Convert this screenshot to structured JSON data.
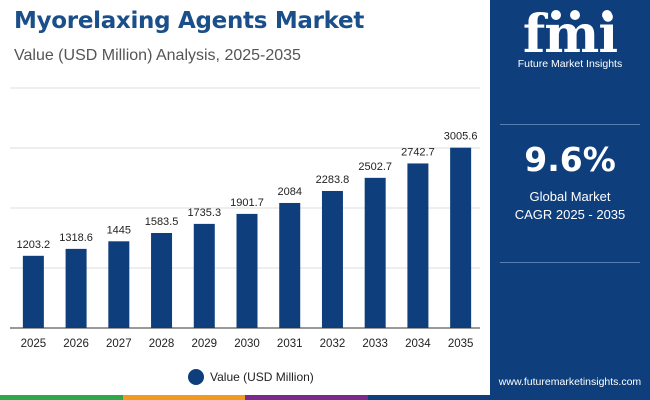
{
  "header": {
    "title": "Myorelaxing Agents Market",
    "subtitle": "Value (USD Million) Analysis, 2025-2035"
  },
  "chart_data": {
    "type": "bar",
    "categories": [
      "2025",
      "2026",
      "2027",
      "2028",
      "2029",
      "2030",
      "2031",
      "2032",
      "2033",
      "2034",
      "2035"
    ],
    "series": [
      {
        "name": "Value (USD Million)",
        "values": [
          1203.2,
          1318.6,
          1445,
          1583.5,
          1735.3,
          1901.7,
          2084,
          2283.8,
          2502.7,
          2742.7,
          3005.6
        ],
        "labels": [
          "1203.2",
          "1318.6",
          "1445",
          "1583.5",
          "1735.3",
          "1901.7",
          "2084",
          "2283.8",
          "2502.7",
          "2742.7",
          "3005.6"
        ]
      }
    ],
    "ylim": [
      0,
      3000
    ],
    "grid": true,
    "legend": "bottom-center",
    "colors": {
      "bar": "#0e3f7c",
      "grid": "#dddddd",
      "axis": "#333333"
    }
  },
  "legend": {
    "label": "Value (USD Million)"
  },
  "side_panel": {
    "logo_text": "fmi",
    "logo_caption": "Future Market Insights",
    "cagr_value": "9.6%",
    "cagr_label_1": "Global Market",
    "cagr_label_2": "CAGR 2025 - 2035",
    "website": "www.futuremarketinsights.com",
    "background": "#0e3f7c"
  },
  "footer_colors": [
    "#2ea84a",
    "#f29a1f",
    "#7a2a8c",
    "#0e3f7c"
  ]
}
